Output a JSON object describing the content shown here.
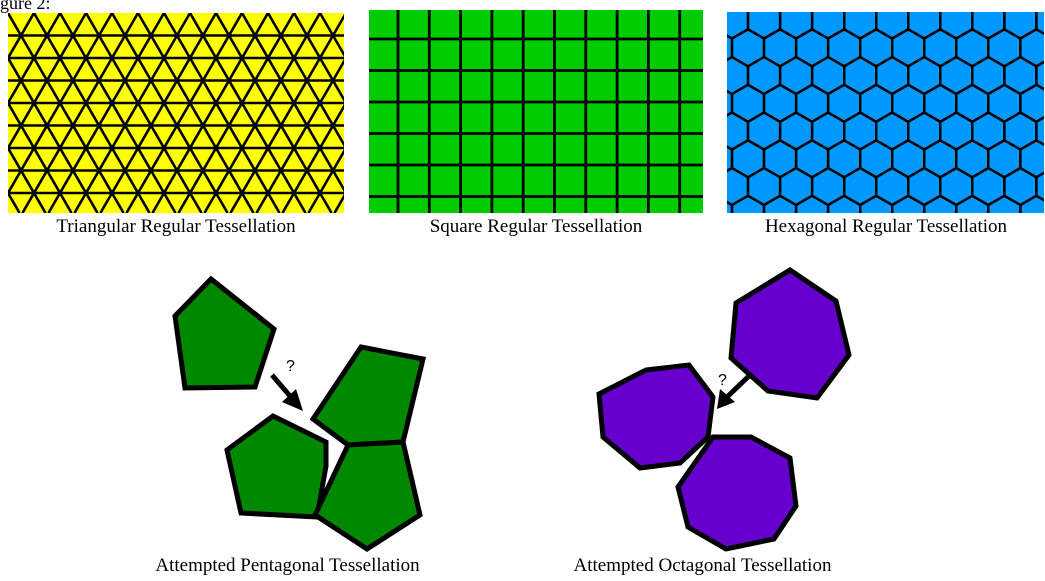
{
  "figure": {
    "label": "gure 2:"
  },
  "tessellations": [
    {
      "id": "triangular",
      "caption": "Triangular Regular Tessellation",
      "fill": "#ffff00",
      "line": "#000000"
    },
    {
      "id": "square",
      "caption": "Square Regular Tessellation",
      "fill": "#00cc00",
      "line": "#000000"
    },
    {
      "id": "hexagonal",
      "caption": "Hexagonal Regular Tessellation",
      "fill": "#0099ff",
      "line": "#000000"
    }
  ],
  "attempts": [
    {
      "id": "pentagonal",
      "caption": "Attempted Pentagonal Tessellation",
      "fill": "#008800",
      "question": "?"
    },
    {
      "id": "octagonal",
      "caption": "Attempted Octagonal Tessellation",
      "fill": "#6600cc",
      "question": "?"
    }
  ]
}
